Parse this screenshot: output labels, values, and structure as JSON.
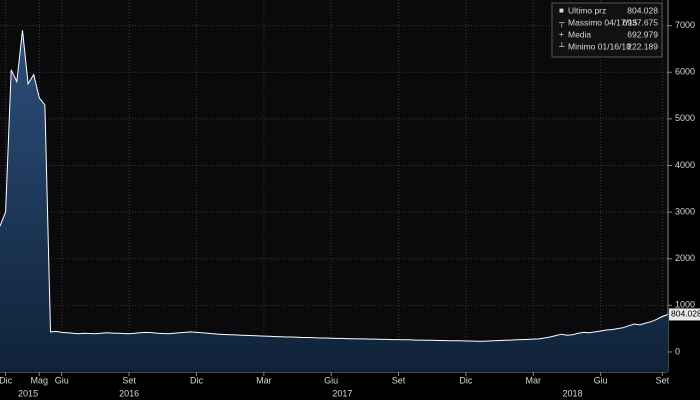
{
  "chart_data": {
    "type": "area",
    "series": [
      {
        "name": "Ultimo prz",
        "color": "#ffffff",
        "values": [
          2700,
          3000,
          6050,
          5800,
          6900,
          5750,
          5950,
          5450,
          5300,
          430,
          440,
          420,
          410,
          400,
          390,
          400,
          395,
          390,
          400,
          410,
          405,
          400,
          395,
          390,
          400,
          410,
          420,
          415,
          400,
          395,
          390,
          400,
          410,
          420,
          430,
          420,
          410,
          400,
          390,
          380,
          375,
          370,
          365,
          360,
          355,
          350,
          345,
          340,
          335,
          330,
          325,
          320,
          320,
          315,
          310,
          310,
          305,
          300,
          300,
          295,
          290,
          290,
          285,
          285,
          280,
          280,
          275,
          275,
          270,
          270,
          265,
          265,
          260,
          260,
          255,
          255,
          250,
          250,
          245,
          245,
          240,
          240,
          240,
          235,
          235,
          230,
          230,
          235,
          240,
          245,
          250,
          255,
          260,
          265,
          270,
          275,
          280,
          300,
          320,
          350,
          380,
          360,
          370,
          400,
          420,
          410,
          430,
          450,
          470,
          480,
          500,
          520,
          560,
          600,
          580,
          620,
          650,
          700,
          760,
          804
        ]
      }
    ],
    "xlim": [
      0,
      119
    ],
    "xticks": [
      {
        "value": 1,
        "label": "Dic"
      },
      {
        "value": 7,
        "label": "Mag"
      },
      {
        "value": 11,
        "label": "Giu"
      },
      {
        "value": 23,
        "label": "Set"
      },
      {
        "value": 35,
        "label": "Dic"
      },
      {
        "value": 47,
        "label": "Mar"
      },
      {
        "value": 59,
        "label": "Giu"
      },
      {
        "value": 71,
        "label": "Set"
      },
      {
        "value": 83,
        "label": "Dic"
      },
      {
        "value": 95,
        "label": "Mar"
      },
      {
        "value": 107,
        "label": "Giu"
      },
      {
        "value": 118,
        "label": "Set"
      }
    ],
    "years": [
      {
        "value": 5,
        "label": "2015"
      },
      {
        "value": 23,
        "label": "2016"
      },
      {
        "value": 61,
        "label": "2017"
      },
      {
        "value": 102,
        "label": "2018"
      }
    ],
    "ylim": [
      -430,
      7550
    ],
    "yticks": [
      0,
      1000,
      2000,
      3000,
      4000,
      5000,
      6000,
      7000
    ],
    "grid": true,
    "last_price": 804.028,
    "legend": [
      {
        "label": "Ultimo prz",
        "value": 804.028
      },
      {
        "label": "Massimo 04/17/15",
        "value": 6937.675
      },
      {
        "label": "Media",
        "value": 692.979
      },
      {
        "label": "Minimo 01/16/18",
        "value": 222.189
      }
    ]
  }
}
